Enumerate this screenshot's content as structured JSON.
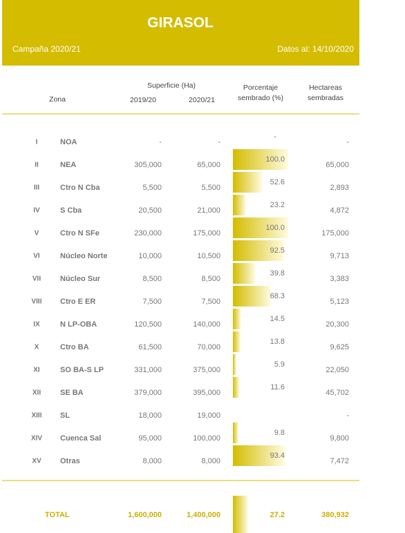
{
  "header": {
    "title": "GIRASOL",
    "campaign": "Campaña 2020/21",
    "date": "Datos al: 14/10/2020"
  },
  "table": {
    "columns": {
      "zone": "Zona",
      "area": "Superficie (Ha)",
      "year1": "2019/20",
      "year2": "2020/21",
      "percent": [
        "Porcentaje",
        "sembrado (%)"
      ],
      "hectares": [
        "Hectareas",
        "sembradas"
      ]
    },
    "rows": [
      [
        "I",
        "NOA",
        "-",
        "-",
        "-",
        "-"
      ],
      [
        "II",
        "NEA",
        "305,000",
        "65,000",
        {
          "value": 100,
          "label": "100.0"
        },
        "65,000"
      ],
      [
        "III",
        "Ctro N Cba",
        "5,500",
        "5,500",
        52.6,
        "2,893"
      ],
      [
        "IV",
        "S Cba",
        "20,500",
        "21,000",
        23.2,
        "4,872"
      ],
      [
        "V",
        "Ctro N SFe",
        "230,000",
        "175,000",
        {
          "value": 100,
          "label": "100.0"
        },
        "175,000"
      ],
      [
        "VI",
        "Núcleo Norte",
        "10,000",
        "10,500",
        92.5,
        "9,713"
      ],
      [
        "VII",
        "Núcleo Sur",
        "8,500",
        "8,500",
        39.8,
        "3,383"
      ],
      [
        "VIII",
        "Ctro E ER",
        "7,500",
        "7,500",
        68.3,
        "5,123"
      ],
      [
        "IX",
        "N LP-OBA",
        "120,500",
        "140,000",
        14.5,
        "20,300"
      ],
      [
        "X",
        "Ctro BA",
        "61,500",
        "70,000",
        13.8,
        "9,625"
      ],
      [
        "XI",
        "SO BA-S LP",
        "331,000",
        "375,000",
        5.9,
        "22,050"
      ],
      [
        "XII",
        "SE BA",
        "379,000",
        "395,000",
        11.6,
        "45,702"
      ],
      [
        "XIII",
        "SL",
        "18,000",
        "19,000",
        null,
        "-"
      ],
      [
        "XIV",
        "Cuenca Sal",
        "95,000",
        "100,000",
        9.8,
        "9,800"
      ],
      [
        "XV",
        "Otras",
        "8,000",
        "8,000",
        93.4,
        "7,472"
      ]
    ],
    "total": [
      "TOTAL",
      "1,600,000",
      "1,400,000",
      27.2,
      "380,932"
    ]
  }
}
